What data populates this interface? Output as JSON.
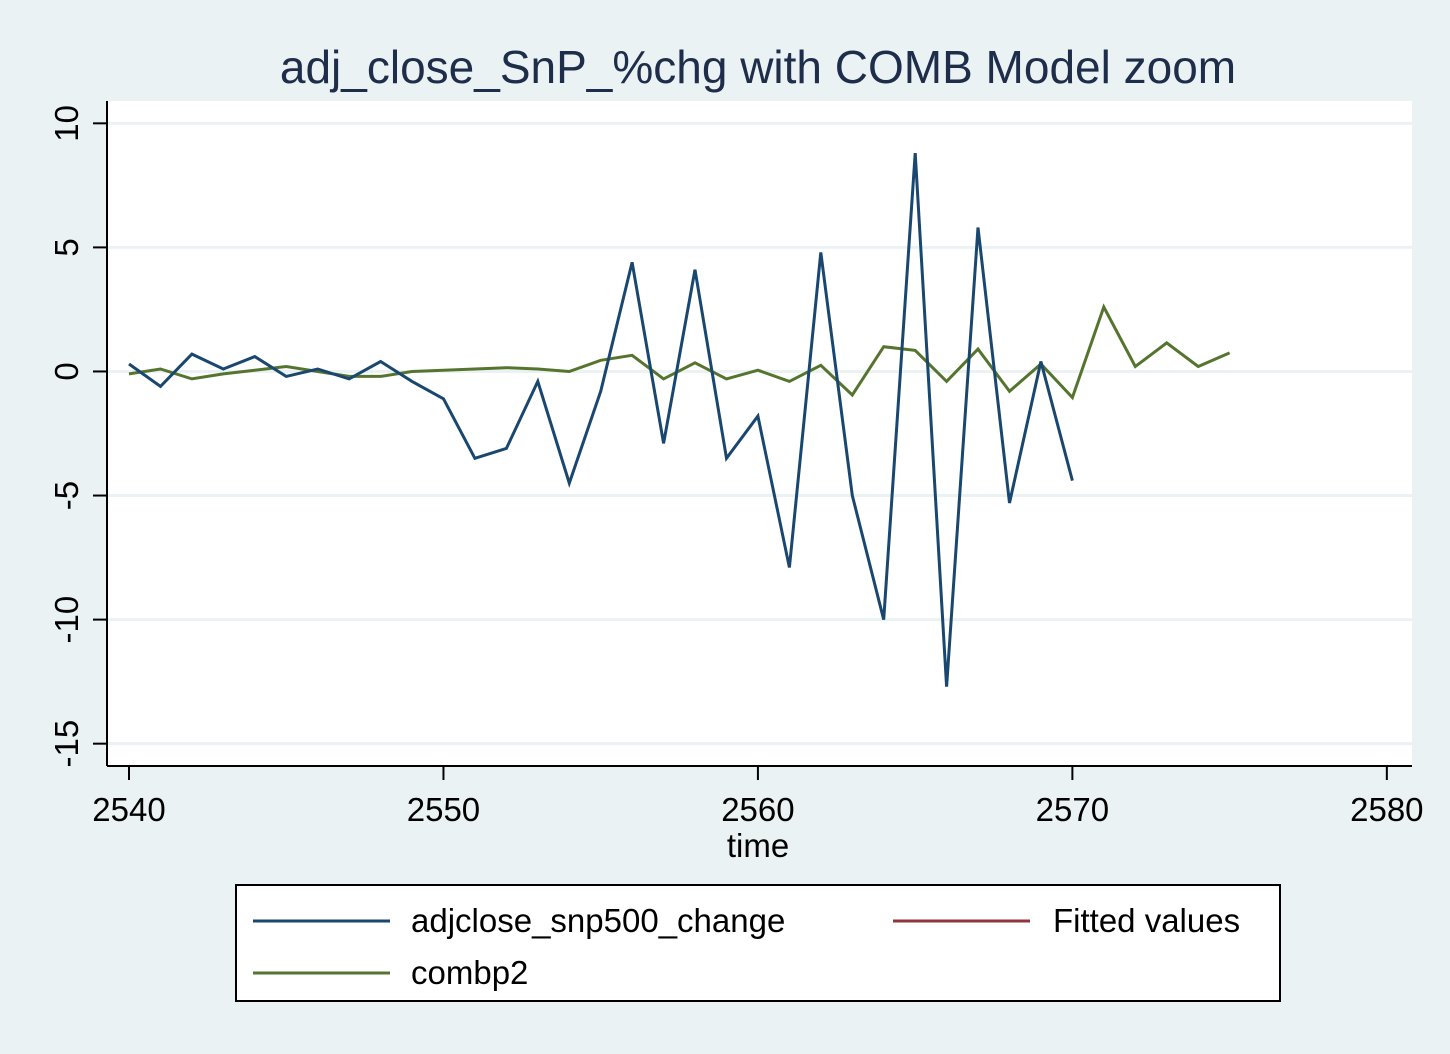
{
  "chart_data": {
    "type": "line",
    "title": "adj_close_SnP_%chg with COMB Model zoom",
    "xlabel": "time",
    "ylabel": "",
    "xlim": [
      2539.3,
      2580.8
    ],
    "ylim": [
      -15.9,
      10.9
    ],
    "xticks": [
      2540,
      2550,
      2560,
      2570,
      2580
    ],
    "yticks": [
      -15,
      -10,
      -5,
      0,
      5,
      10
    ],
    "grid": "horizontal",
    "legend_position": "bottom",
    "series": [
      {
        "name": "adjclose_snp500_change",
        "color": "#1a476f",
        "x": [
          2540,
          2541,
          2542,
          2543,
          2544,
          2545,
          2546,
          2547,
          2548,
          2549,
          2550,
          2551,
          2552,
          2553,
          2554,
          2555,
          2556,
          2557,
          2558,
          2559,
          2560,
          2561,
          2562,
          2563,
          2564,
          2565,
          2566,
          2567,
          2568,
          2569,
          2570
        ],
        "values": [
          0.3,
          -0.6,
          0.7,
          0.1,
          0.6,
          -0.2,
          0.1,
          -0.3,
          0.4,
          -0.4,
          -1.1,
          -3.5,
          -3.1,
          -0.4,
          -4.5,
          -0.8,
          4.4,
          -2.9,
          4.1,
          -3.5,
          -1.8,
          -7.9,
          4.8,
          -5.0,
          -10.0,
          8.8,
          -12.7,
          5.8,
          -5.3,
          0.4,
          -4.4
        ]
      },
      {
        "name": "Fitted values",
        "color": "#90353b",
        "x": [],
        "values": []
      },
      {
        "name": "combp2",
        "color": "#55752f",
        "x": [
          2540,
          2541,
          2542,
          2543,
          2544,
          2545,
          2546,
          2547,
          2548,
          2549,
          2550,
          2551,
          2552,
          2553,
          2554,
          2555,
          2556,
          2557,
          2558,
          2559,
          2560,
          2561,
          2562,
          2563,
          2564,
          2565,
          2566,
          2567,
          2568,
          2569,
          2570,
          2571,
          2572,
          2573,
          2574,
          2575
        ],
        "values": [
          -0.1,
          0.1,
          -0.3,
          -0.1,
          0.05,
          0.2,
          0.0,
          -0.2,
          -0.2,
          0.0,
          0.05,
          0.1,
          0.15,
          0.1,
          0.0,
          0.45,
          0.65,
          -0.3,
          0.35,
          -0.3,
          0.05,
          -0.4,
          0.25,
          -0.95,
          1.0,
          0.85,
          -0.4,
          0.9,
          -0.8,
          0.3,
          -1.05,
          2.6,
          0.2,
          1.15,
          0.2,
          0.75
        ]
      }
    ]
  }
}
